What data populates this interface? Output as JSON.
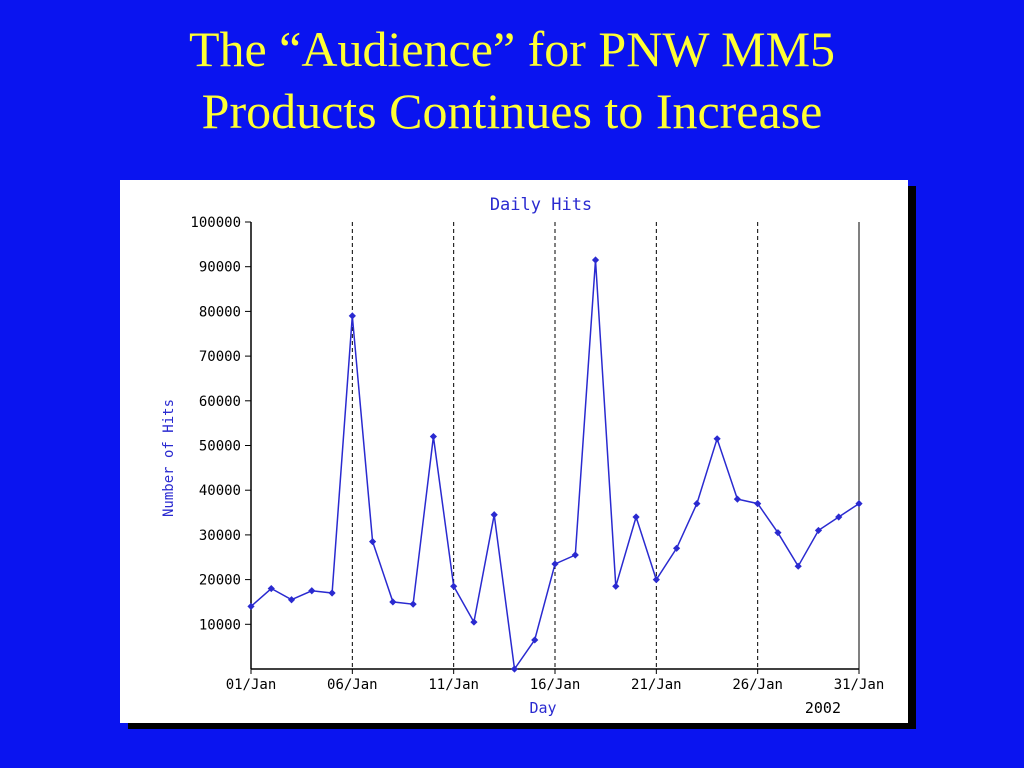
{
  "slide": {
    "title_line1": "The “Audience” for PNW MM5",
    "title_line2": "Products Continues to Increase"
  },
  "colors": {
    "background": "#0a14f0",
    "title": "#ffff33",
    "series": "#2a2ad0",
    "axis_text": "#000000",
    "label_text": "#2a2ad0"
  },
  "chart_data": {
    "type": "line",
    "title": "Daily Hits",
    "xlabel": "Day",
    "ylabel": "Number of Hits",
    "year_label": "2002",
    "xlim": [
      1,
      31
    ],
    "ylim": [
      0,
      100000
    ],
    "grid": "vertical-dashed-at-ticks",
    "x_ticks": [
      1,
      6,
      11,
      16,
      21,
      26,
      31
    ],
    "x_tick_labels": [
      "01/Jan",
      "06/Jan",
      "11/Jan",
      "16/Jan",
      "21/Jan",
      "26/Jan",
      "31/Jan"
    ],
    "y_ticks": [
      10000,
      20000,
      30000,
      40000,
      50000,
      60000,
      70000,
      80000,
      90000,
      100000
    ],
    "y_tick_labels": [
      "10000",
      "20000",
      "30000",
      "40000",
      "50000",
      "60000",
      "70000",
      "80000",
      "90000",
      "100000"
    ],
    "series": [
      {
        "x": [
          1,
          2,
          3,
          4,
          5,
          6,
          7,
          8,
          9,
          10,
          11,
          12,
          13,
          14,
          15,
          16,
          17,
          18,
          19,
          20,
          21,
          22,
          23,
          24,
          25,
          26,
          27,
          28,
          29,
          30,
          31
        ],
        "values": [
          14000,
          18000,
          15500,
          17500,
          17000,
          79000,
          28500,
          15000,
          14500,
          52000,
          18500,
          10500,
          34500,
          0,
          6500,
          23500,
          25500,
          91500,
          18500,
          34000,
          20000,
          27000,
          37000,
          51500,
          38000,
          37000,
          30500,
          23000,
          31000,
          34000,
          37000
        ]
      }
    ]
  }
}
